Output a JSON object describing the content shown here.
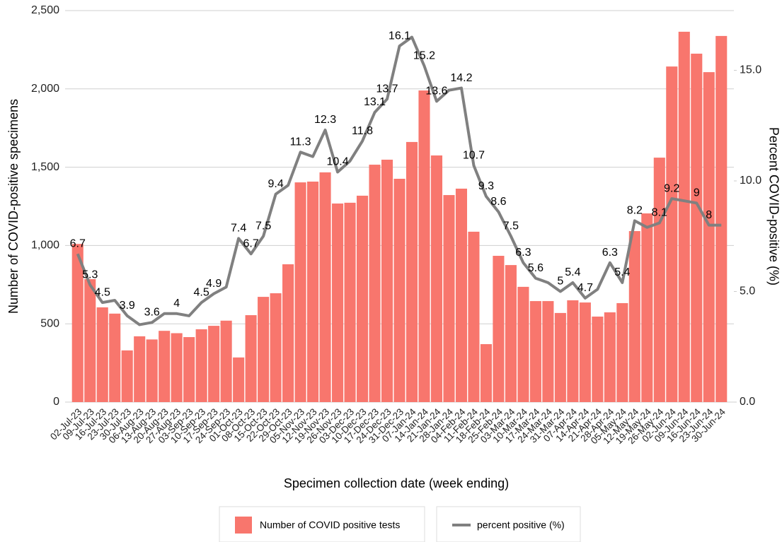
{
  "chart_data": {
    "type": "bar_line",
    "x_label": "Specimen collection date (week ending)",
    "y_label": "Number of COVID-positive specimens",
    "y2_label": "Percent COVID-positive (%)",
    "categories": [
      "02-Jul-23",
      "09-Jul-23",
      "16-Jul-23",
      "23-Jul-23",
      "30-Jul-23",
      "06-Aug-23",
      "13-Aug-23",
      "20-Aug-23",
      "27-Aug-23",
      "03-Sep-23",
      "10-Sep-23",
      "17-Sep-23",
      "24-Sep-23",
      "01-Oct-23",
      "08-Oct-23",
      "15-Oct-23",
      "22-Oct-23",
      "29-Oct-23",
      "05-Nov-23",
      "12-Nov-23",
      "19-Nov-23",
      "26-Nov-23",
      "03-Dec-23",
      "10-Dec-23",
      "17-Dec-23",
      "24-Dec-23",
      "31-Dec-23",
      "07-Jan-24",
      "14-Jan-24",
      "21-Jan-24",
      "28-Jan-24",
      "04-Feb-24",
      "11-Feb-24",
      "18-Feb-24",
      "25-Feb-24",
      "03-Mar-24",
      "10-Mar-24",
      "17-Mar-24",
      "24-Mar-24",
      "31-Mar-24",
      "07-Apr-24",
      "14-Apr-24",
      "21-Apr-24",
      "28-Apr-24",
      "05-May-24",
      "12-May-24",
      "19-May-24",
      "26-May-24",
      "02-Jun-24",
      "09-Jun-24",
      "16-Jun-24",
      "23-Jun-24",
      "30-Jun-24"
    ],
    "series": [
      {
        "name": "Number of COVID positive tests",
        "type": "bar",
        "color": "#f8766d",
        "values": [
          1010,
          785,
          605,
          565,
          330,
          420,
          400,
          455,
          440,
          415,
          465,
          487,
          520,
          285,
          555,
          672,
          695,
          880,
          1403,
          1408,
          1467,
          1268,
          1273,
          1318,
          1516,
          1548,
          1426,
          1661,
          1990,
          1575,
          1322,
          1363,
          1088,
          370,
          934,
          875,
          736,
          645,
          645,
          569,
          650,
          636,
          546,
          573,
          632,
          1092,
          1205,
          1561,
          2143,
          2365,
          2225,
          2107,
          2338
        ]
      },
      {
        "name": "percent positive (%)",
        "type": "line",
        "axis": "y2",
        "color": "#808080",
        "values": [
          6.7,
          5.3,
          4.5,
          4.6,
          3.9,
          3.5,
          3.6,
          4.0,
          4,
          3.9,
          4.5,
          4.9,
          5.2,
          7.4,
          6.7,
          7.5,
          9.4,
          9.8,
          11.3,
          11.1,
          12.3,
          10.4,
          10.9,
          11.8,
          13.1,
          13.7,
          16.1,
          16.5,
          15.2,
          13.6,
          14.1,
          14.2,
          10.7,
          9.3,
          8.6,
          7.5,
          6.3,
          5.6,
          5.4,
          5,
          5.4,
          4.7,
          5.1,
          6.3,
          5.4,
          8.2,
          7.9,
          8.1,
          9.2,
          9.1,
          9,
          8,
          8.0
        ],
        "value_labels": [
          "6.7",
          "5.3",
          "4.5",
          null,
          "3.9",
          null,
          "3.6",
          null,
          "4",
          null,
          "4.5",
          "4.9",
          null,
          "7.4",
          "6.7",
          "7.5",
          "9.4",
          null,
          "11.3",
          null,
          "12.3",
          "10.4",
          null,
          "11.8",
          "13.1",
          "13.7",
          "16.1",
          null,
          "15.2",
          "13.6",
          null,
          "14.2",
          "10.7",
          "9.3",
          "8.6",
          "7.5",
          "6.3",
          "5.6",
          null,
          "5",
          "5.4",
          "4.7",
          null,
          "6.3",
          "5.4",
          "8.2",
          null,
          "8.1",
          "9.2",
          null,
          "9",
          "8",
          null
        ]
      }
    ],
    "ylim": [
      0,
      2500
    ],
    "yticks": [
      0,
      500,
      {
        "value": 1000,
        "label": "1,000"
      },
      {
        "value": 1500,
        "label": "1,500"
      },
      {
        "value": 2000,
        "label": "2,000"
      },
      {
        "value": 2500,
        "label": "2,500"
      }
    ],
    "y2lim": [
      0,
      17.7
    ],
    "y2ticks": [
      {
        "value": 0,
        "label": "0.0"
      },
      {
        "value": 5,
        "label": "5.0"
      },
      {
        "value": 10,
        "label": "10.0"
      },
      {
        "value": 15,
        "label": "15.0"
      }
    ],
    "grid": true,
    "legend": "bottom"
  }
}
